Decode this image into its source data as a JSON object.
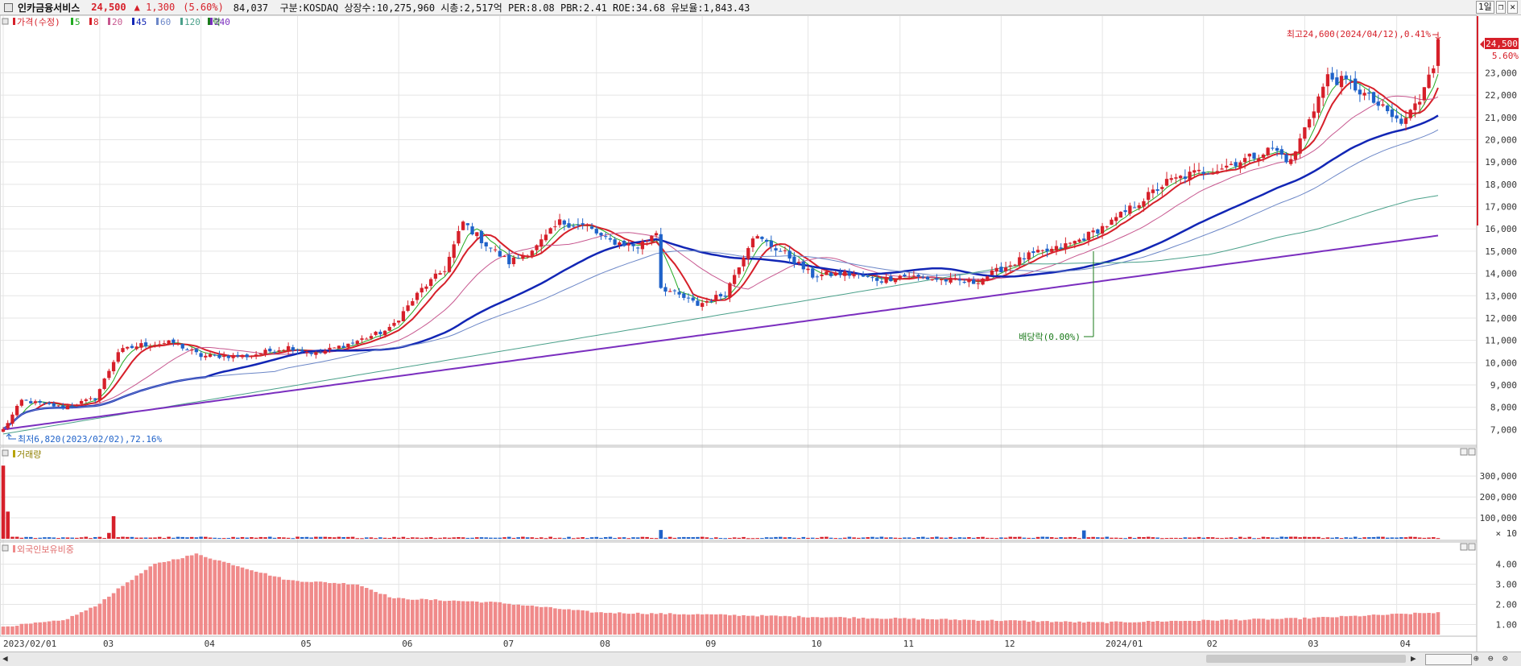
{
  "header": {
    "stock_name": "인카금융서비스",
    "price": "24,500",
    "change": "▲ 1,300",
    "change_pct": "(5.60%)",
    "info": "84,037  구분:KOSDAQ 상장수:10,275,960 시총:2,517억 PER:8.08 PBR:2.41 ROE:34.68 유보율:1,843.43",
    "period_button": "1일",
    "btn_restore": "❐",
    "btn_close": "✕"
  },
  "legend": {
    "price_label": "가격(수정)",
    "ma": [
      {
        "label": "5",
        "color": "#22aa22"
      },
      {
        "label": "8",
        "color": "#d6202a"
      },
      {
        "label": "20",
        "color": "#c7578f"
      },
      {
        "label": "45",
        "color": "#1226b5"
      },
      {
        "label": "60",
        "color": "#6b86c7"
      },
      {
        "label": "120",
        "color": "#4aa08a"
      },
      {
        "label": "240",
        "color": "#7b2fbf"
      }
    ],
    "event_label": "락",
    "volume_label": "거래량",
    "foreign_label": "외국인보유비중"
  },
  "annotations": {
    "high": "최고24,600(2024/04/12),0.41%",
    "low": "최저6,820(2023/02/02),72.16%",
    "dividend": "배당락(0.00%)",
    "last_price_badge": "24,500",
    "last_change_badge": "5.60%",
    "volume_unit": "× 10"
  },
  "colors": {
    "up": "#d6202a",
    "down": "#1f62c9",
    "foreign_bar": "#f08a8a",
    "grid": "#e5e5e5"
  },
  "chart_data": {
    "type": "candlestick",
    "x_tick_labels": [
      "2023/02/01",
      "03",
      "04",
      "05",
      "06",
      "07",
      "08",
      "09",
      "10",
      "11",
      "12",
      "2024/01",
      "02",
      "03",
      "04"
    ],
    "price_axis": {
      "ticks": [
        "7,000",
        "8,000",
        "9,000",
        "10,000",
        "11,000",
        "12,000",
        "13,000",
        "14,000",
        "15,000",
        "16,000",
        "17,000",
        "18,000",
        "19,000",
        "20,000",
        "21,000",
        "22,000",
        "23,000"
      ],
      "ylim": [
        6400,
        25400
      ]
    },
    "volume_axis": {
      "ticks": [
        "100,000",
        "200,000",
        "300,000"
      ],
      "ylim": [
        0,
        420000
      ]
    },
    "foreign_axis": {
      "ticks": [
        "1.00",
        "2.00",
        "3.00",
        "4.00"
      ],
      "ylim": [
        0.5,
        4.9
      ]
    },
    "price_anchors": [
      [
        "2023/02/01",
        7000
      ],
      [
        "2023/02/07",
        8300
      ],
      [
        "2023/02/20",
        8000
      ],
      [
        "2023/03/01",
        8400
      ],
      [
        "2023/03/08",
        10500
      ],
      [
        "2023/03/15",
        10800
      ],
      [
        "2023/03/24",
        10900
      ],
      [
        "2023/04/03",
        10300
      ],
      [
        "2023/04/17",
        10300
      ],
      [
        "2023/04/28",
        10700
      ],
      [
        "2023/05/08",
        10400
      ],
      [
        "2023/05/18",
        10900
      ],
      [
        "2023/05/30",
        11500
      ],
      [
        "2023/06/08",
        13300
      ],
      [
        "2023/06/15",
        14200
      ],
      [
        "2023/06/21",
        16300
      ],
      [
        "2023/06/28",
        15300
      ],
      [
        "2023/07/05",
        14500
      ],
      [
        "2023/07/13",
        15200
      ],
      [
        "2023/07/20",
        16300
      ],
      [
        "2023/07/28",
        16100
      ],
      [
        "2023/08/03",
        15500
      ],
      [
        "2023/08/14",
        15200
      ],
      [
        "2023/08/18",
        15900
      ],
      [
        "2023/08/21",
        13400
      ],
      [
        "2023/08/31",
        12600
      ],
      [
        "2023/09/10",
        13100
      ],
      [
        "2023/09/18",
        15700
      ],
      [
        "2023/09/27",
        14900
      ],
      [
        "2023/10/05",
        13900
      ],
      [
        "2023/10/16",
        14000
      ],
      [
        "2023/10/26",
        13700
      ],
      [
        "2023/11/01",
        13900
      ],
      [
        "2023/11/15",
        13700
      ],
      [
        "2023/11/23",
        13600
      ],
      [
        "2023/12/01",
        14200
      ],
      [
        "2023/12/11",
        14800
      ],
      [
        "2023/12/19",
        15100
      ],
      [
        "2023/12/26",
        15500
      ],
      [
        "2024/01/04",
        16300
      ],
      [
        "2024/01/12",
        17200
      ],
      [
        "2024/01/22",
        18100
      ],
      [
        "2024/01/30",
        18500
      ],
      [
        "2024/02/06",
        18700
      ],
      [
        "2024/02/15",
        19200
      ],
      [
        "2024/02/22",
        19600
      ],
      [
        "2024/02/28",
        19000
      ],
      [
        "2024/03/05",
        21000
      ],
      [
        "2024/03/11",
        22800
      ],
      [
        "2024/03/18",
        22500
      ],
      [
        "2024/03/25",
        21700
      ],
      [
        "2024/04/02",
        20700
      ],
      [
        "2024/04/08",
        21800
      ],
      [
        "2024/04/12",
        24500
      ]
    ],
    "volume_spikes": [
      [
        "2023/02/01",
        350000
      ],
      [
        "2023/02/02",
        130000
      ],
      [
        "2023/03/06",
        28000
      ],
      [
        "2023/03/07",
        108000
      ],
      [
        "2023/08/21",
        42000
      ],
      [
        "2023/12/27",
        40000
      ]
    ],
    "foreign_anchors": [
      [
        "2023/02/01",
        0.9
      ],
      [
        "2023/02/20",
        1.2
      ],
      [
        "2023/03/01",
        1.9
      ],
      [
        "2023/03/10",
        3.1
      ],
      [
        "2023/03/20",
        4.0
      ],
      [
        "2023/03/31",
        4.5
      ],
      [
        "2023/04/30",
        3.2
      ],
      [
        "2023/05/20",
        3.0
      ],
      [
        "2023/05/31",
        2.3
      ],
      [
        "2023/06/30",
        2.1
      ],
      [
        "2023/08/01",
        1.6
      ],
      [
        "2023/09/01",
        1.5
      ],
      [
        "2023/10/01",
        1.4
      ],
      [
        "2023/12/01",
        1.2
      ],
      [
        "2024/01/01",
        1.1
      ],
      [
        "2024/03/01",
        1.3
      ],
      [
        "2024/04/12",
        1.6
      ]
    ]
  }
}
